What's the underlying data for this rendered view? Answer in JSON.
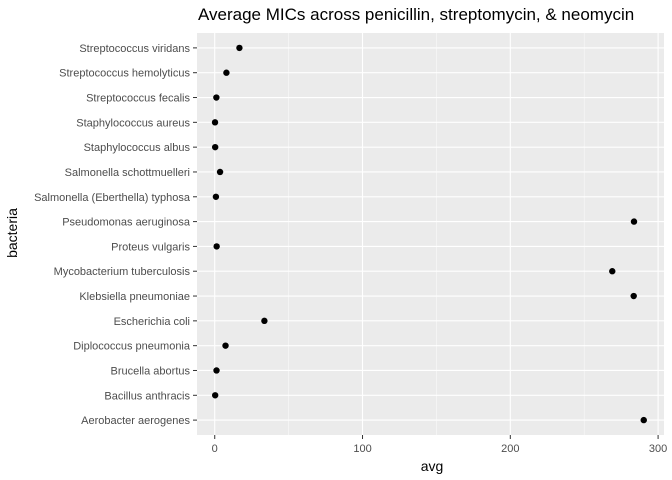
{
  "chart_data": {
    "type": "scatter",
    "title": "Average MICs across penicillin, streptomycin, & neomycin",
    "xlabel": "avg",
    "ylabel": "bacteria",
    "xlim": [
      -12,
      304
    ],
    "x_ticks": [
      0,
      100,
      200,
      300
    ],
    "x_tick_labels": [
      "0",
      "100",
      "200",
      "300"
    ],
    "grid": true,
    "legend": "none",
    "colors": {
      "panel": "#ebebeb",
      "grid_major": "#ffffff",
      "point": "#000000",
      "tick_label": "#4d4d4d"
    },
    "categories": [
      "Streptococcus viridans",
      "Streptococcus hemolyticus",
      "Streptococcus fecalis",
      "Staphylococcus aureus",
      "Staphylococcus albus",
      "Salmonella schottmuelleri",
      "Salmonella (Eberthella) typhosa",
      "Pseudomonas aeruginosa",
      "Proteus vulgaris",
      "Mycobacterium tuberculosis",
      "Klebsiella pneumoniae",
      "Escherichia coli",
      "Diplococcus pneumonia",
      "Brucella abortus",
      "Bacillus anthracis",
      "Aerobacter aerogenes"
    ],
    "values": [
      16.7,
      7.9,
      1.1,
      0.2,
      0.3,
      3.6,
      0.8,
      283.7,
      1.3,
      269.0,
      283.5,
      33.6,
      7.3,
      1.2,
      0.3,
      290.3
    ]
  }
}
